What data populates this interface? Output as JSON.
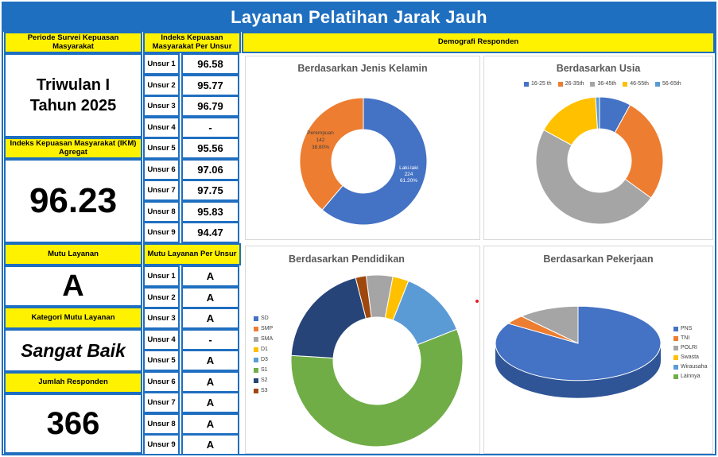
{
  "title": "Layanan Pelatihan Jarak Jauh",
  "left": {
    "periode_header": "Periode Survei Kepuasan Masyarakat",
    "periode_line1": "Triwulan I",
    "periode_line2": "Tahun 2025",
    "ikm_header": "Indeks Kepuasan Masyarakat (IKM) Agregat",
    "ikm_value": "96.23",
    "mutu_header": "Mutu Layanan",
    "mutu_value": "A",
    "kategori_header": "Kategori Mutu Layanan",
    "kategori_value": "Sangat Baik",
    "jumlah_header": "Jumlah Responden",
    "jumlah_value": "366"
  },
  "index_table": {
    "header": "Indeks Kepuasan Masyarakat Per Unsur",
    "rows": [
      {
        "label": "Unsur 1",
        "value": "96.58"
      },
      {
        "label": "Unsur 2",
        "value": "95.77"
      },
      {
        "label": "Unsur 3",
        "value": "96.79"
      },
      {
        "label": "Unsur 4",
        "value": "-"
      },
      {
        "label": "Unsur 5",
        "value": "95.56"
      },
      {
        "label": "Unsur 6",
        "value": "97.06"
      },
      {
        "label": "Unsur 7",
        "value": "97.75"
      },
      {
        "label": "Unsur 8",
        "value": "95.83"
      },
      {
        "label": "Unsur 9",
        "value": "94.47"
      }
    ]
  },
  "mutu_table": {
    "header": "Mutu Layanan Per Unsur",
    "rows": [
      {
        "label": "Unsur 1",
        "value": "A"
      },
      {
        "label": "Unsur 2",
        "value": "A"
      },
      {
        "label": "Unsur 3",
        "value": "A"
      },
      {
        "label": "Unsur 4",
        "value": "-"
      },
      {
        "label": "Unsur 5",
        "value": "A"
      },
      {
        "label": "Unsur 6",
        "value": "A"
      },
      {
        "label": "Unsur 7",
        "value": "A"
      },
      {
        "label": "Unsur 8",
        "value": "A"
      },
      {
        "label": "Unsur 9",
        "value": "A"
      }
    ]
  },
  "demografi_header": "Demografi Responden",
  "colors": {
    "blue": "#4472c4",
    "orange": "#ed7d31",
    "gray": "#a5a5a5",
    "gold": "#ffc000",
    "lightblue": "#5b9bd5",
    "green": "#70ad47",
    "navy": "#264478",
    "brown": "#9e480e",
    "frame": "#1f6fc0",
    "yellow": "#fff200"
  },
  "chart_data": [
    {
      "type": "pie",
      "title": "Berdasarkan Jenis Kelamin",
      "categories": [
        "Laki-laki",
        "Perempuan"
      ],
      "values": [
        224,
        142
      ],
      "percent_labels": [
        "61.20%",
        "38.80%"
      ],
      "value_labels": [
        "224",
        "142"
      ],
      "colors": [
        "#4472c4",
        "#ed7d31"
      ],
      "donut": true
    },
    {
      "type": "pie",
      "title": "Berdasarkan Usia",
      "categories": [
        "16-25 th",
        "26-35th",
        "36-45th",
        "46-55th",
        "56-65th"
      ],
      "values": [
        8,
        27,
        48,
        16,
        1
      ],
      "colors": [
        "#4472c4",
        "#ed7d31",
        "#a5a5a5",
        "#ffc000",
        "#5b9bd5"
      ],
      "legend": "top",
      "donut": true
    },
    {
      "type": "pie",
      "title": "Berdasarkan Pendidikan",
      "categories": [
        "SD",
        "SMP",
        "SMA",
        "D1",
        "D3",
        "S1",
        "S2",
        "S3"
      ],
      "values": [
        0,
        0,
        5,
        3,
        13,
        57,
        20,
        2
      ],
      "colors": [
        "#4472c4",
        "#ed7d31",
        "#a5a5a5",
        "#ffc000",
        "#5b9bd5",
        "#70ad47",
        "#264478",
        "#9e480e"
      ],
      "legend": "left",
      "donut": true
    },
    {
      "type": "pie",
      "title": "Berdasarkan Pekerjaan",
      "categories": [
        "PNS",
        "TNI",
        "POLRI",
        "Swasta",
        "Wirausaha",
        "Lainnya"
      ],
      "values": [
        84,
        4,
        12,
        0,
        0,
        0
      ],
      "colors": [
        "#4472c4",
        "#ed7d31",
        "#a5a5a5",
        "#ffc000",
        "#5b9bd5",
        "#70ad47"
      ],
      "legend": "right",
      "donut": false
    }
  ]
}
